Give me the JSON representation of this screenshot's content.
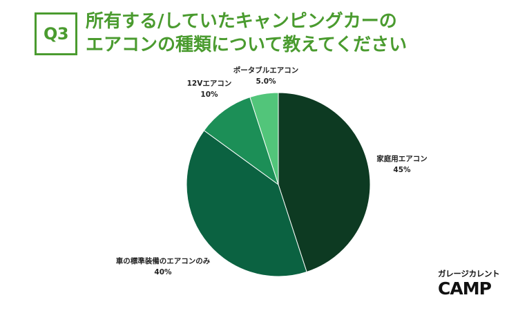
{
  "header": {
    "badge": "Q3",
    "title_line1": "所有する/していたキャンピングカーの",
    "title_line2": "エアコンの種類について教えてください"
  },
  "logo": {
    "top_text": "ガレージカレント",
    "main_text": "CAMP"
  },
  "chart_data": {
    "type": "pie",
    "start": "top",
    "direction": "clockwise",
    "slices": [
      {
        "label": "家庭用エアコン",
        "value_label": "45%",
        "value": 45,
        "color": "#0d3a22"
      },
      {
        "label": "車の標準装備のエアコンのみ",
        "value_label": "40%",
        "value": 40,
        "color": "#0b6241"
      },
      {
        "label": "12Vエアコン",
        "value_label": "10%",
        "value": 10,
        "color": "#1c8f57"
      },
      {
        "label": "ポータブルエアコン",
        "value_label": "5.0%",
        "value": 5,
        "color": "#52c57a"
      }
    ]
  }
}
